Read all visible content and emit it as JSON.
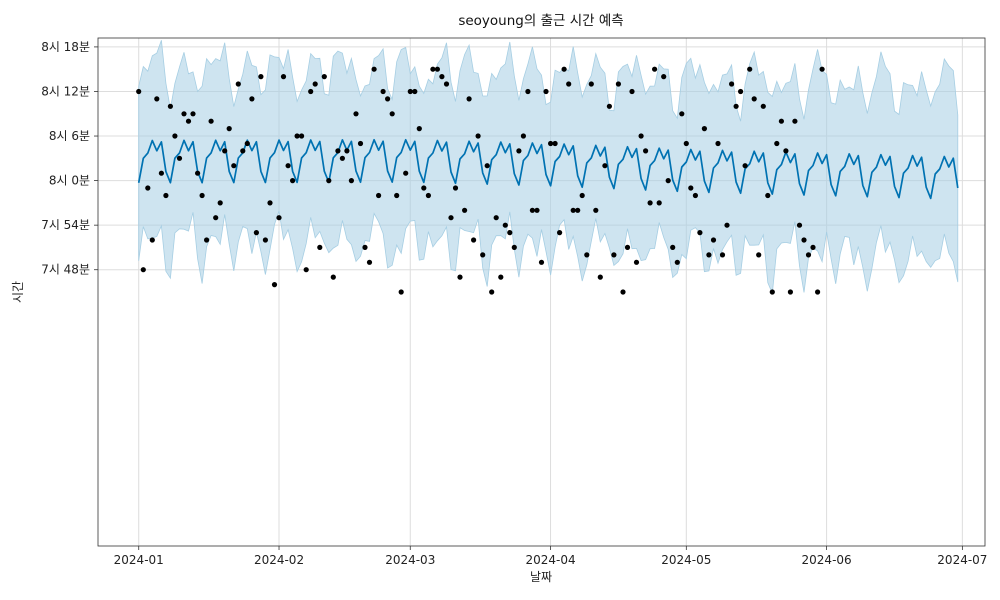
{
  "chart_data": {
    "type": "line",
    "title": "seoyoung의 출근 시간 예측",
    "xlabel": "날짜",
    "ylabel": "시간",
    "x_axis": {
      "type": "date",
      "range": [
        "2023-12-23",
        "2024-07-06"
      ],
      "ticks": [
        {
          "value": "2024-01-01",
          "label": "2024-01"
        },
        {
          "value": "2024-02-01",
          "label": "2024-02"
        },
        {
          "value": "2024-03-01",
          "label": "2024-03"
        },
        {
          "value": "2024-04-01",
          "label": "2024-04"
        },
        {
          "value": "2024-05-01",
          "label": "2024-05"
        },
        {
          "value": "2024-06-01",
          "label": "2024-06"
        },
        {
          "value": "2024-07-01",
          "label": "2024-07"
        }
      ]
    },
    "y_axis": {
      "unit": "minutes after 08:00",
      "range": [
        -49.2,
        19.2
      ],
      "ticks": [
        {
          "value": -12,
          "label": "7시 48분"
        },
        {
          "value": -6,
          "label": "7시 54분"
        },
        {
          "value": 0,
          "label": "8시 0분"
        },
        {
          "value": 6,
          "label": "8시 6분"
        },
        {
          "value": 12,
          "label": "8시 12분"
        },
        {
          "value": 18,
          "label": "8시 18분"
        }
      ]
    },
    "grid": true,
    "legend": "none",
    "forecast": {
      "name": "yhat",
      "color": "#0072b2",
      "band_color": "#a6cee3",
      "start": "2024-01-01",
      "end": "2024-06-30",
      "trend": [
        [
          "2024-01-01",
          1.2
        ],
        [
          "2024-03-01",
          1.3
        ],
        [
          "2024-04-01",
          0.8
        ],
        [
          "2024-05-01",
          0.0
        ],
        [
          "2024-06-30",
          -1.0
        ]
      ],
      "weekly_effect": [
        -1.5,
        1.8,
        2.5,
        4.2,
        2.8,
        4.0,
        0.0
      ],
      "lower_offset": -11.5,
      "upper_offset": 11.5
    },
    "observations": {
      "color": "#000000",
      "points": [
        [
          "2024-01-01",
          12
        ],
        [
          "2024-01-02",
          -12
        ],
        [
          "2024-01-03",
          -1
        ],
        [
          "2024-01-04",
          -8
        ],
        [
          "2024-01-05",
          11
        ],
        [
          "2024-01-06",
          1
        ],
        [
          "2024-01-07",
          -2
        ],
        [
          "2024-01-08",
          10
        ],
        [
          "2024-01-09",
          6
        ],
        [
          "2024-01-10",
          3
        ],
        [
          "2024-01-11",
          9
        ],
        [
          "2024-01-12",
          8
        ],
        [
          "2024-01-13",
          9
        ],
        [
          "2024-01-14",
          1
        ],
        [
          "2024-01-15",
          -2
        ],
        [
          "2024-01-16",
          -8
        ],
        [
          "2024-01-17",
          8
        ],
        [
          "2024-01-18",
          -5
        ],
        [
          "2024-01-19",
          -3
        ],
        [
          "2024-01-20",
          4
        ],
        [
          "2024-01-21",
          7
        ],
        [
          "2024-01-22",
          2
        ],
        [
          "2024-01-23",
          13
        ],
        [
          "2024-01-24",
          4
        ],
        [
          "2024-01-25",
          5
        ],
        [
          "2024-01-26",
          11
        ],
        [
          "2024-01-27",
          -7
        ],
        [
          "2024-01-28",
          14
        ],
        [
          "2024-01-29",
          -8
        ],
        [
          "2024-01-30",
          -3
        ],
        [
          "2024-01-31",
          -14
        ],
        [
          "2024-02-01",
          -5
        ],
        [
          "2024-02-02",
          14
        ],
        [
          "2024-02-03",
          2
        ],
        [
          "2024-02-04",
          0
        ],
        [
          "2024-02-05",
          6
        ],
        [
          "2024-02-06",
          6
        ],
        [
          "2024-02-07",
          -12
        ],
        [
          "2024-02-08",
          12
        ],
        [
          "2024-02-09",
          13
        ],
        [
          "2024-02-10",
          -9
        ],
        [
          "2024-02-11",
          14
        ],
        [
          "2024-02-12",
          0
        ],
        [
          "2024-02-13",
          -13
        ],
        [
          "2024-02-14",
          4
        ],
        [
          "2024-02-15",
          3
        ],
        [
          "2024-02-16",
          4
        ],
        [
          "2024-02-17",
          0
        ],
        [
          "2024-02-18",
          9
        ],
        [
          "2024-02-19",
          5
        ],
        [
          "2024-02-20",
          -9
        ],
        [
          "2024-02-21",
          -11
        ],
        [
          "2024-02-22",
          15
        ],
        [
          "2024-02-23",
          -2
        ],
        [
          "2024-02-24",
          12
        ],
        [
          "2024-02-25",
          11
        ],
        [
          "2024-02-26",
          9
        ],
        [
          "2024-02-27",
          -2
        ],
        [
          "2024-02-28",
          -15
        ],
        [
          "2024-02-29",
          1
        ],
        [
          "2024-03-01",
          12
        ],
        [
          "2024-03-02",
          12
        ],
        [
          "2024-03-03",
          7
        ],
        [
          "2024-03-04",
          -1
        ],
        [
          "2024-03-05",
          -2
        ],
        [
          "2024-03-06",
          15
        ],
        [
          "2024-03-07",
          15
        ],
        [
          "2024-03-08",
          14
        ],
        [
          "2024-03-09",
          13
        ],
        [
          "2024-03-10",
          -5
        ],
        [
          "2024-03-11",
          -1
        ],
        [
          "2024-03-12",
          -13
        ],
        [
          "2024-03-13",
          -4
        ],
        [
          "2024-03-14",
          11
        ],
        [
          "2024-03-15",
          -8
        ],
        [
          "2024-03-16",
          6
        ],
        [
          "2024-03-17",
          -10
        ],
        [
          "2024-03-18",
          2
        ],
        [
          "2024-03-19",
          -15
        ],
        [
          "2024-03-20",
          -5
        ],
        [
          "2024-03-21",
          -13
        ],
        [
          "2024-03-22",
          -6
        ],
        [
          "2024-03-23",
          -7
        ],
        [
          "2024-03-24",
          -9
        ],
        [
          "2024-03-25",
          4
        ],
        [
          "2024-03-26",
          6
        ],
        [
          "2024-03-27",
          12
        ],
        [
          "2024-03-28",
          -4
        ],
        [
          "2024-03-29",
          -4
        ],
        [
          "2024-03-30",
          -11
        ],
        [
          "2024-03-31",
          12
        ],
        [
          "2024-04-01",
          5
        ],
        [
          "2024-04-02",
          5
        ],
        [
          "2024-04-03",
          -7
        ],
        [
          "2024-04-04",
          15
        ],
        [
          "2024-04-05",
          13
        ],
        [
          "2024-04-06",
          -4
        ],
        [
          "2024-04-07",
          -4
        ],
        [
          "2024-04-08",
          -2
        ],
        [
          "2024-04-09",
          -10
        ],
        [
          "2024-04-10",
          13
        ],
        [
          "2024-04-11",
          -4
        ],
        [
          "2024-04-12",
          -13
        ],
        [
          "2024-04-13",
          2
        ],
        [
          "2024-04-14",
          10
        ],
        [
          "2024-04-15",
          -10
        ],
        [
          "2024-04-16",
          13
        ],
        [
          "2024-04-17",
          -15
        ],
        [
          "2024-04-18",
          -9
        ],
        [
          "2024-04-19",
          12
        ],
        [
          "2024-04-20",
          -11
        ],
        [
          "2024-04-21",
          6
        ],
        [
          "2024-04-22",
          4
        ],
        [
          "2024-04-23",
          -3
        ],
        [
          "2024-04-24",
          15
        ],
        [
          "2024-04-25",
          -3
        ],
        [
          "2024-04-26",
          14
        ],
        [
          "2024-04-27",
          0
        ],
        [
          "2024-04-28",
          -9
        ],
        [
          "2024-04-29",
          -11
        ],
        [
          "2024-04-30",
          9
        ],
        [
          "2024-05-01",
          5
        ],
        [
          "2024-05-02",
          -1
        ],
        [
          "2024-05-03",
          -2
        ],
        [
          "2024-05-04",
          -7
        ],
        [
          "2024-05-05",
          7
        ],
        [
          "2024-05-06",
          -10
        ],
        [
          "2024-05-07",
          -8
        ],
        [
          "2024-05-08",
          5
        ],
        [
          "2024-05-09",
          -10
        ],
        [
          "2024-05-10",
          -6
        ],
        [
          "2024-05-11",
          13
        ],
        [
          "2024-05-12",
          10
        ],
        [
          "2024-05-13",
          12
        ],
        [
          "2024-05-14",
          2
        ],
        [
          "2024-05-15",
          15
        ],
        [
          "2024-05-16",
          11
        ],
        [
          "2024-05-17",
          -10
        ],
        [
          "2024-05-18",
          10
        ],
        [
          "2024-05-19",
          -2
        ],
        [
          "2024-05-20",
          -15
        ],
        [
          "2024-05-21",
          5
        ],
        [
          "2024-05-22",
          8
        ],
        [
          "2024-05-23",
          4
        ],
        [
          "2024-05-24",
          -15
        ],
        [
          "2024-05-25",
          8
        ],
        [
          "2024-05-26",
          -6
        ],
        [
          "2024-05-27",
          -8
        ],
        [
          "2024-05-28",
          -10
        ],
        [
          "2024-05-29",
          -9
        ],
        [
          "2024-05-30",
          -15
        ],
        [
          "2024-05-31",
          15
        ]
      ]
    }
  }
}
